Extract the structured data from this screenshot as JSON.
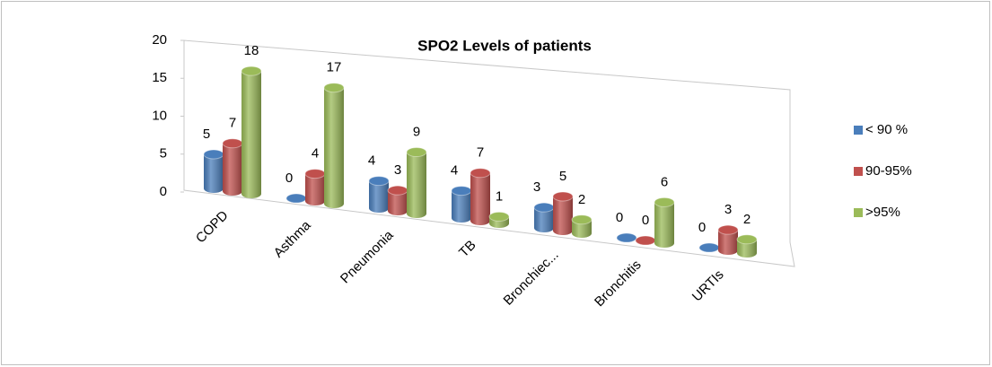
{
  "chart_data": {
    "type": "bar3d",
    "title": "SPO2 Levels of patients",
    "categories": [
      "COPD",
      "Asthma",
      "Pneumonia",
      "TB",
      "Bronchiec...",
      "Bronchitis",
      "URTIs"
    ],
    "series": [
      {
        "name": "< 90 %",
        "color": "#4a7ebb",
        "values": [
          5,
          0,
          4,
          4,
          3,
          0,
          0
        ]
      },
      {
        "name": "90-95%",
        "color": "#c0504d",
        "values": [
          7,
          4,
          3,
          7,
          5,
          0,
          3
        ]
      },
      {
        "name": ">95%",
        "color": "#9bbb59",
        "values": [
          18,
          17,
          9,
          1,
          2,
          6,
          2
        ]
      }
    ],
    "ylim": [
      0,
      20
    ],
    "yticks": [
      0,
      5,
      10,
      15,
      20
    ],
    "grid": false,
    "legend": "right"
  }
}
